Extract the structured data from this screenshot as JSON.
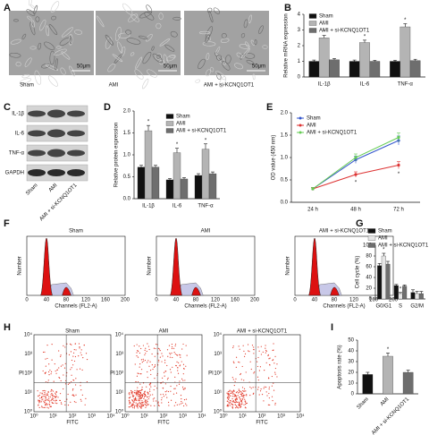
{
  "panels": [
    "A",
    "B",
    "C",
    "D",
    "E",
    "F",
    "G",
    "H",
    "I"
  ],
  "micrographs": {
    "labels": [
      "Sham",
      "AMI",
      "AMI + si-KCNQ1OT1"
    ],
    "scale_bar": "50μm"
  },
  "blots": {
    "proteins": [
      "IL-1β",
      "IL-6",
      "TNF-α",
      "GAPDH"
    ],
    "lanes": [
      "Sham",
      "AMI",
      "AMI + si-KCNQ1OT1"
    ]
  },
  "histograms": {
    "titles": [
      "Sham",
      "AMI",
      "AMI + si-KCNQ1OT1"
    ],
    "ylabel": "Number",
    "xlabel": "Channels (FL2-A)",
    "xticks": [
      "0",
      "40",
      "80",
      "120",
      "160",
      "200"
    ]
  },
  "flow": {
    "titles": [
      "Sham",
      "AMI",
      "AMI + si-KCNQ1OT1"
    ],
    "ylabel": "PI",
    "xlabel": "FITC",
    "ticks": [
      "10⁰",
      "10¹",
      "10²",
      "10³",
      "10⁴"
    ]
  },
  "chart_data": [
    {
      "type": "bar",
      "ylabel": "Relative mRNA expression",
      "categories": [
        "IL-1β",
        "IL-6",
        "TNF-α"
      ],
      "ylim": [
        0,
        4
      ],
      "yticks": [
        0,
        1,
        2,
        3,
        4
      ],
      "series": [
        {
          "name": "Sham",
          "color": "#111111",
          "values": [
            1,
            1,
            1
          ],
          "errors": [
            0.08,
            0.08,
            0.07
          ]
        },
        {
          "name": "AMI",
          "color": "#b4b4b4",
          "values": [
            2.5,
            2.2,
            3.2
          ],
          "errors": [
            0.15,
            0.15,
            0.2
          ],
          "annotations": [
            "*",
            "*",
            "*"
          ]
        },
        {
          "name": "AMI + si-KCNQ1OT1",
          "color": "#6e6e6e",
          "values": [
            1.1,
            1.0,
            1.05
          ],
          "errors": [
            0.08,
            0.06,
            0.08
          ]
        }
      ]
    },
    {
      "type": "bar",
      "ylabel": "Relative protein expression",
      "categories": [
        "IL-1β",
        "IL-6",
        "TNF-α"
      ],
      "ylim": [
        0,
        2
      ],
      "yticks": [
        {
          "value": 0,
          "label": "0.0"
        },
        0.5,
        {
          "value": 1,
          "label": "1.0"
        },
        1.5,
        {
          "value": 2,
          "label": "2.0"
        }
      ],
      "series": [
        {
          "name": "Sham",
          "color": "#111111",
          "values": [
            0.72,
            0.43,
            0.53
          ],
          "errors": [
            0.04,
            0.03,
            0.04
          ]
        },
        {
          "name": "AMI",
          "color": "#b4b4b4",
          "values": [
            1.55,
            1.05,
            1.13
          ],
          "errors": [
            0.12,
            0.1,
            0.12
          ],
          "annotations": [
            "*",
            "*",
            "*"
          ]
        },
        {
          "name": "AMI + si-KCNQ1OT1",
          "color": "#6e6e6e",
          "values": [
            0.72,
            0.45,
            0.57
          ],
          "errors": [
            0.04,
            0.03,
            0.04
          ]
        }
      ]
    },
    {
      "type": "line",
      "ylabel": "OD value (450 nm)",
      "categories": [
        "24 h",
        "48 h",
        "72 h"
      ],
      "ylim": [
        0,
        2
      ],
      "yticks": [
        {
          "value": 0,
          "label": "0.0"
        },
        0.5,
        {
          "value": 1,
          "label": "1.0"
        },
        1.5,
        {
          "value": 2,
          "label": "2.0"
        }
      ],
      "series": [
        {
          "name": "Sham",
          "color": "#3355cc",
          "values": [
            0.3,
            0.95,
            1.38
          ],
          "errors": [
            0.03,
            0.08,
            0.1
          ]
        },
        {
          "name": "AMI",
          "color": "#dd3333",
          "values": [
            0.3,
            0.62,
            0.83
          ],
          "errors": [
            0.03,
            0.06,
            0.08
          ],
          "annotations": [
            null,
            "*",
            "*"
          ]
        },
        {
          "name": "AMI + si-KCNQ1OT1",
          "color": "#66cc55",
          "values": [
            0.3,
            1.0,
            1.45
          ],
          "errors": [
            0.03,
            0.08,
            0.1
          ]
        }
      ]
    },
    {
      "type": "bar",
      "ylabel": "Cell cycle (%)",
      "categories": [
        "G0/G1",
        "S",
        "G2/M"
      ],
      "ylim": [
        0,
        100
      ],
      "yticks": [
        0,
        20,
        40,
        60,
        80,
        100
      ],
      "series": [
        {
          "name": "Sham",
          "color": "#111111",
          "values": [
            62,
            25,
            12
          ],
          "errors": [
            4,
            2,
            5
          ]
        },
        {
          "name": "AMI",
          "color": "#e6e6e6",
          "values": [
            80,
            10,
            10
          ],
          "errors": [
            5,
            2,
            4
          ],
          "annotations": [
            "*",
            "*",
            null
          ]
        },
        {
          "name": "AMI + si-KCNQ1OT1",
          "color": "#6e6e6e",
          "values": [
            65,
            24,
            10
          ],
          "errors": [
            5,
            2,
            4
          ]
        }
      ]
    },
    {
      "type": "bar",
      "ylabel": "Apoptosis rate (%)",
      "categories": [
        "Sham",
        "AMI",
        "AMI + si-KCNQ1OT1"
      ],
      "ylim": [
        0,
        50
      ],
      "yticks": [
        0,
        10,
        20,
        30,
        40,
        50
      ],
      "values": [
        18,
        35,
        20
      ],
      "errors": [
        2,
        3,
        2
      ],
      "annotations": [
        null,
        "*",
        null
      ],
      "colors": [
        "#111111",
        "#b4b4b4",
        "#6e6e6e"
      ]
    }
  ]
}
